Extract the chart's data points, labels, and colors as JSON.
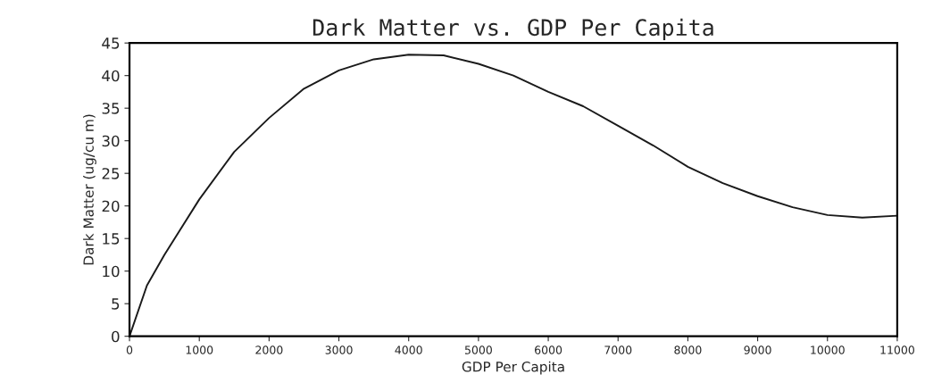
{
  "chart_data": {
    "type": "line",
    "title": "Dark Matter vs. GDP Per Capita",
    "xlabel": "GDP Per Capita",
    "ylabel": "Dark Matter (ug/cu m)",
    "x": [
      0,
      250,
      500,
      1000,
      1500,
      2000,
      2500,
      3000,
      3500,
      4000,
      4500,
      5000,
      5500,
      6000,
      6500,
      7000,
      7500,
      8000,
      8500,
      9000,
      9500,
      10000,
      10500,
      11000
    ],
    "series": [
      {
        "color": "#1a1a1a",
        "values": [
          0,
          7.8,
          12.5,
          21,
          28.3,
          33.5,
          38,
          40.8,
          42.5,
          43.2,
          43.1,
          41.8,
          40,
          37.5,
          35.3,
          32.3,
          29.3,
          26,
          23.5,
          21.5,
          19.8,
          18.6,
          18.2,
          18.5
        ]
      }
    ],
    "xlim": [
      0,
      11000
    ],
    "ylim": [
      0,
      45
    ],
    "xticks": [
      0,
      1000,
      2000,
      3000,
      4000,
      5000,
      6000,
      7000,
      8000,
      9000,
      10000,
      11000
    ],
    "yticks": [
      0,
      5,
      10,
      15,
      20,
      25,
      30,
      35,
      40,
      45
    ],
    "grid": false,
    "marker": "none",
    "line_style": "solid"
  }
}
